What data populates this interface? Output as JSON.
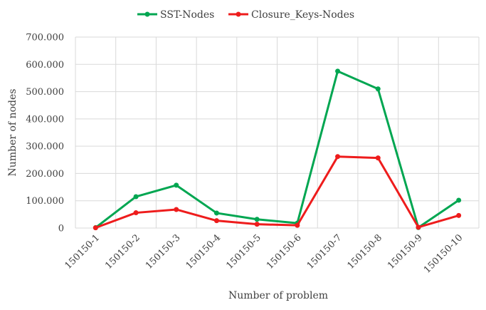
{
  "chart_data": {
    "type": "line",
    "categories": [
      "150150-1",
      "150150-2",
      "150150-3",
      "150150-4",
      "150150-5",
      "150150-6",
      "150150-7",
      "150150-8",
      "150150-9",
      "150150-10"
    ],
    "series": [
      {
        "name": "SST-Nodes",
        "color": "#00a651",
        "values": [
          1500,
          115000,
          157000,
          55000,
          32000,
          18000,
          575000,
          510000,
          2000,
          102000
        ]
      },
      {
        "name": "Closure_Keys-Nodes",
        "color": "#ee1c1c",
        "values": [
          1000,
          56000,
          68000,
          27000,
          14000,
          10000,
          262000,
          257000,
          3000,
          46000
        ]
      }
    ],
    "title": "",
    "xlabel": "Number of problem",
    "ylabel": "Number of nodes",
    "ylim": [
      0,
      700000
    ],
    "yticks": [
      "0",
      "100.000",
      "200.000",
      "300.000",
      "400.000",
      "500.000",
      "600.000",
      "700.000"
    ],
    "grid": true,
    "legend_position": "top-center"
  }
}
